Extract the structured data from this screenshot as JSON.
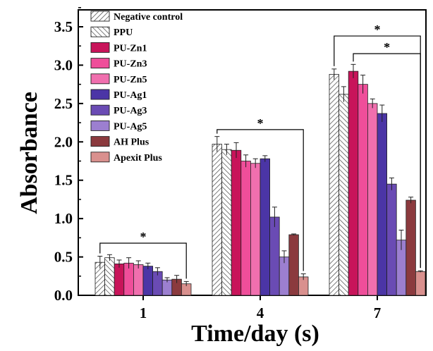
{
  "chart_data": {
    "type": "bar",
    "xlabel": "Time/day (s)",
    "ylabel": "Absorbance",
    "categories": [
      "1",
      "4",
      "7"
    ],
    "ylim": [
      0.0,
      3.65
    ],
    "yticks": [
      "0.0",
      "0.5",
      "1.0",
      "1.5",
      "2.0",
      "2.5",
      "3.0",
      "3.5"
    ],
    "grid": false,
    "legend_position": "top-left",
    "series": [
      {
        "name": "Negative control",
        "color": "#ffffff",
        "pattern": "hatch-forward",
        "values": [
          0.43,
          1.97,
          2.88
        ],
        "errors": [
          0.08,
          0.1,
          0.07
        ]
      },
      {
        "name": "PPU",
        "color": "#ffffff",
        "pattern": "hatch-back",
        "values": [
          0.49,
          1.9,
          2.62
        ],
        "errors": [
          0.04,
          0.07,
          0.1
        ]
      },
      {
        "name": "PU-Zn1",
        "color": "#c8145a",
        "pattern": "solid",
        "values": [
          0.41,
          1.89,
          2.92
        ],
        "errors": [
          0.05,
          0.1,
          0.09
        ]
      },
      {
        "name": "PU-Zn3",
        "color": "#ef4e9a",
        "pattern": "solid",
        "values": [
          0.42,
          1.75,
          2.75
        ],
        "errors": [
          0.07,
          0.08,
          0.12
        ]
      },
      {
        "name": "PU-Zn5",
        "color": "#f06fae",
        "pattern": "solid",
        "values": [
          0.4,
          1.72,
          2.5
        ],
        "errors": [
          0.05,
          0.06,
          0.06
        ]
      },
      {
        "name": "PU-Ag1",
        "color": "#4b35a6",
        "pattern": "solid",
        "values": [
          0.38,
          1.78,
          2.37
        ],
        "errors": [
          0.04,
          0.04,
          0.11
        ]
      },
      {
        "name": "PU-Ag3",
        "color": "#6a4bb4",
        "pattern": "solid",
        "values": [
          0.31,
          1.02,
          1.45
        ],
        "errors": [
          0.05,
          0.13,
          0.08
        ]
      },
      {
        "name": "PU-Ag5",
        "color": "#9c7fd0",
        "pattern": "solid",
        "values": [
          0.2,
          0.5,
          0.72
        ],
        "errors": [
          0.03,
          0.08,
          0.13
        ]
      },
      {
        "name": "AH Plus",
        "color": "#8b3a3e",
        "pattern": "solid",
        "values": [
          0.21,
          0.79,
          1.24
        ],
        "errors": [
          0.05,
          0.01,
          0.04
        ]
      },
      {
        "name": "Apexit Plus",
        "color": "#d9908e",
        "pattern": "solid",
        "values": [
          0.15,
          0.24,
          0.31
        ],
        "errors": [
          0.03,
          0.04,
          0.01
        ]
      }
    ],
    "annotations": [
      {
        "text": "*",
        "category": "1",
        "from_series": 0,
        "to_series": 9,
        "y": 0.68
      },
      {
        "text": "*",
        "category": "4",
        "from_series": 0,
        "to_series": 9,
        "y": 2.16
      },
      {
        "text": "*",
        "category": "7",
        "from_series": 0,
        "to_series": 9,
        "y": 3.38
      },
      {
        "text": "*",
        "category": "7",
        "from_series": 2,
        "to_series": 9,
        "y": 3.15
      }
    ]
  }
}
